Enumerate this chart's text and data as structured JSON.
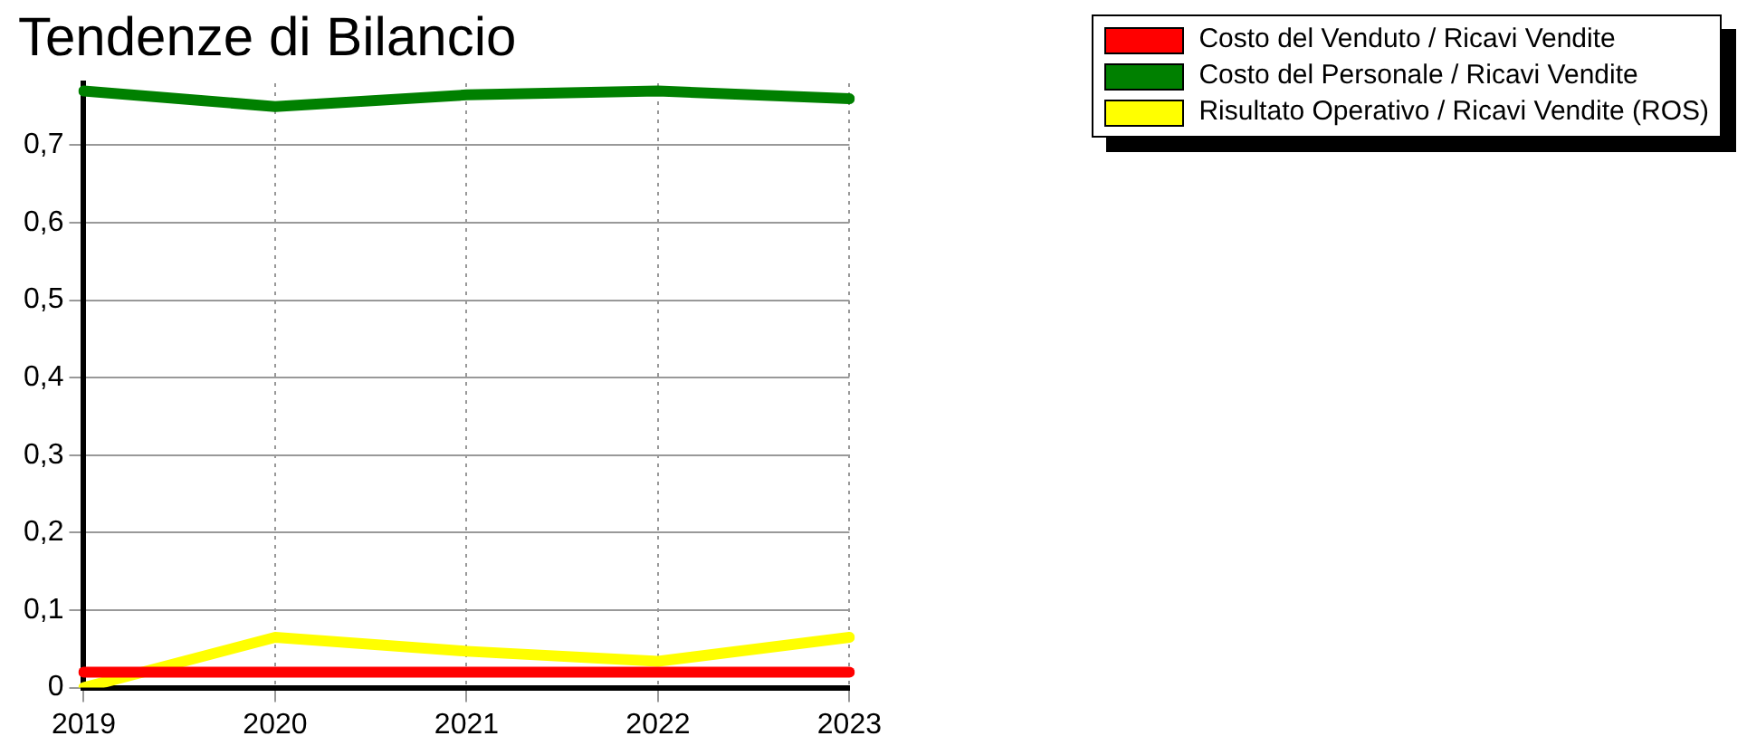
{
  "chart_data": {
    "type": "line",
    "title": "Tendenze di Bilancio",
    "categories": [
      "2019",
      "2020",
      "2021",
      "2022",
      "2023"
    ],
    "series": [
      {
        "name": "Costo del Venduto / Ricavi Vendite",
        "color": "#ff0000",
        "values": [
          0.02,
          0.02,
          0.02,
          0.02,
          0.02
        ]
      },
      {
        "name": "Costo del Personale / Ricavi Vendite",
        "color": "#008000",
        "values": [
          0.77,
          0.75,
          0.765,
          0.77,
          0.76
        ]
      },
      {
        "name": "Risultato Operativo / Ricavi Vendite (ROS)",
        "color": "#ffff00",
        "values": [
          0,
          0.065,
          0.047,
          0.034,
          0.065
        ]
      }
    ],
    "ylim": [
      0,
      0.78
    ],
    "yticks": [
      0,
      {
        "value": 0.1,
        "label": "0,1"
      },
      {
        "value": 0.2,
        "label": "0,2"
      },
      {
        "value": 0.3,
        "label": "0,3"
      },
      {
        "value": 0.4,
        "label": "0,4"
      },
      {
        "value": 0.5,
        "label": "0,5"
      },
      {
        "value": 0.6,
        "label": "0,6"
      },
      {
        "value": 0.7,
        "label": "0,7"
      }
    ],
    "grid": true,
    "legend": "top right",
    "marker": "none",
    "line_style": "solid"
  }
}
